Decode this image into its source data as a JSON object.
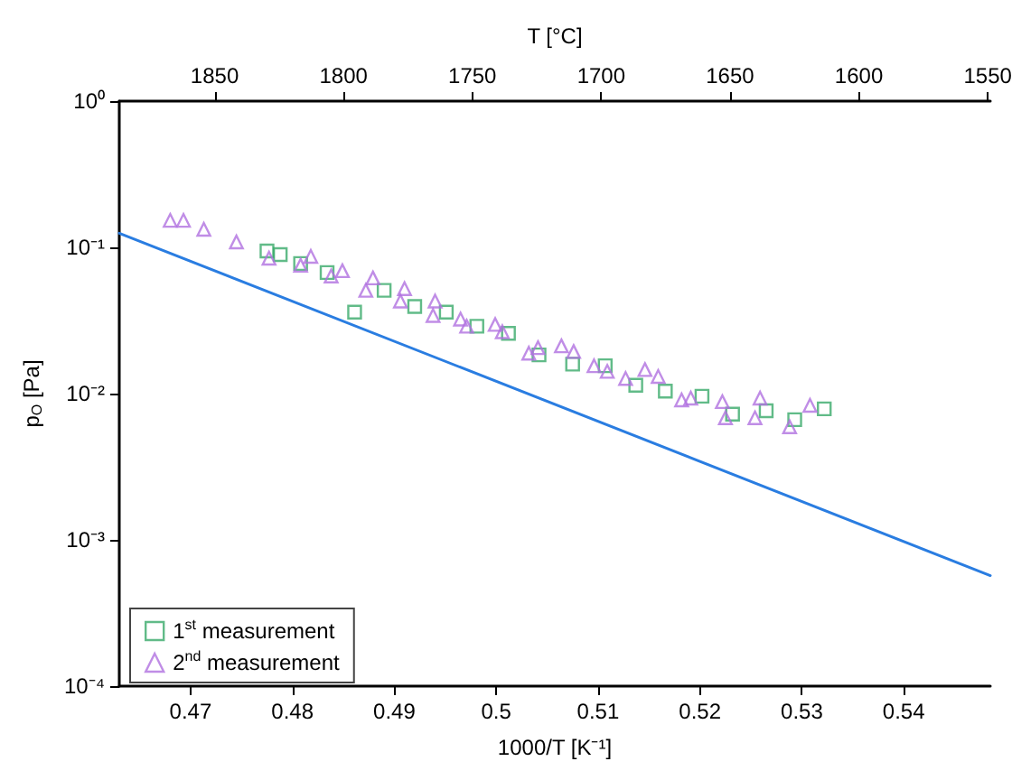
{
  "chart_data": {
    "type": "scatter",
    "xlabel": "1000/T [K⁻¹]",
    "ylabel": "p$_{O}$ [Pa]",
    "x2label": "T [°C]",
    "xlim": [
      0.463,
      0.5485
    ],
    "xticks": [
      0.47,
      0.48,
      0.49,
      0.5,
      0.51,
      0.52,
      0.53,
      0.54
    ],
    "x2lim": [
      1887,
      1549
    ],
    "x2ticks": [
      1850,
      1800,
      1750,
      1700,
      1650,
      1600,
      1550
    ],
    "ylim": [
      0.0001,
      1
    ],
    "yticks": [
      {
        "value": 0.0001,
        "label": "10⁻⁴"
      },
      {
        "value": 0.001,
        "label": "10⁻³"
      },
      {
        "value": 0.01,
        "label": "10⁻²"
      },
      {
        "value": 0.1,
        "label": "10⁻¹"
      },
      {
        "value": 1,
        "label": "10⁰"
      }
    ],
    "log": "y",
    "grid": false,
    "legend": "bottom left",
    "series": [
      {
        "name": "1$^{st}$ measurement",
        "marker": "square",
        "color": "#3aaa6a",
        "x": [
          0.4775,
          0.4788,
          0.4808,
          0.4834,
          0.489,
          0.4861,
          0.492,
          0.4951,
          0.4981,
          0.5012,
          0.5042,
          0.5075,
          0.5107,
          0.5137,
          0.5166,
          0.5202,
          0.5232,
          0.5265,
          0.5293,
          0.5322
        ],
        "values": [
          0.0945,
          0.0893,
          0.0776,
          0.0673,
          0.0508,
          0.0361,
          0.0394,
          0.0361,
          0.0289,
          0.0258,
          0.0184,
          0.0159,
          0.0155,
          0.0114,
          0.0104,
          0.0096,
          0.00723,
          0.00764,
          0.00663,
          0.00787
        ]
      },
      {
        "name": "2$^{nd}$ measurement",
        "marker": "triangle",
        "color": "#b070e0",
        "x": [
          0.468,
          0.4693,
          0.4713,
          0.4745,
          0.4777,
          0.4808,
          0.4818,
          0.4838,
          0.4849,
          0.4879,
          0.4872,
          0.491,
          0.4906,
          0.494,
          0.4938,
          0.4965,
          0.4971,
          0.4999,
          0.5006,
          0.5032,
          0.5041,
          0.5064,
          0.5076,
          0.5096,
          0.5109,
          0.5127,
          0.5146,
          0.5159,
          0.5182,
          0.5191,
          0.5222,
          0.5225,
          0.5254,
          0.5259,
          0.5288,
          0.5308
        ],
        "values": [
          0.153,
          0.153,
          0.133,
          0.109,
          0.0844,
          0.0754,
          0.0868,
          0.0637,
          0.0692,
          0.0618,
          0.0508,
          0.0522,
          0.0429,
          0.0429,
          0.0342,
          0.0323,
          0.0289,
          0.0297,
          0.0265,
          0.0189,
          0.0206,
          0.0212,
          0.0194,
          0.0155,
          0.0142,
          0.0127,
          0.0146,
          0.0131,
          0.00906,
          0.00932,
          0.00881,
          0.00683,
          0.00683,
          0.00932,
          0.00593,
          0.00832
        ]
      },
      {
        "type": "line",
        "marker": "none",
        "line_style": "solid",
        "color": "#2a7de1",
        "x": [
          0.463,
          0.5485
        ],
        "values": [
          0.125,
          0.00057
        ]
      }
    ]
  }
}
